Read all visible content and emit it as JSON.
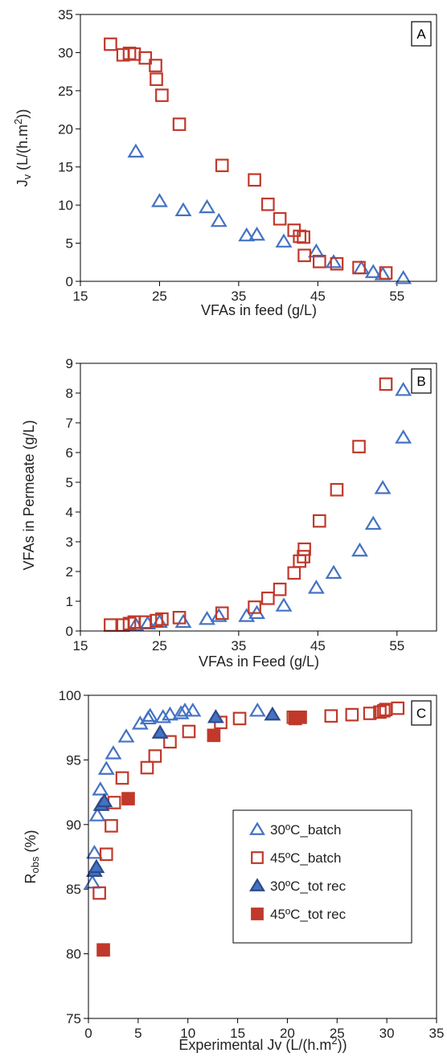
{
  "colors": {
    "blue": "#4472C4",
    "red": "#C0392B",
    "axis": "#000000"
  },
  "chart_data": [
    {
      "type": "scatter",
      "panel": "A",
      "xlabel": "VFAs in feed (g/L)",
      "ylabel_main": "J",
      "ylabel_sub": "v",
      "ylabel_unit": " (L/(h.m",
      "ylabel_sup": "2",
      "ylabel_end": "))",
      "xlim": [
        15,
        60
      ],
      "ylim": [
        0,
        35
      ],
      "xticks": [
        15,
        25,
        35,
        45,
        55
      ],
      "yticks": [
        0,
        5,
        10,
        15,
        20,
        25,
        30,
        35
      ],
      "grid": false,
      "series": [
        {
          "marker": "triangle-open",
          "color": "#4472C4",
          "points": [
            [
              22,
              17
            ],
            [
              25,
              10.5
            ],
            [
              28,
              9.3
            ],
            [
              31,
              9.7
            ],
            [
              32.5,
              7.9
            ],
            [
              36,
              6
            ],
            [
              37.3,
              6.1
            ],
            [
              40.7,
              5.2
            ],
            [
              44.8,
              3.9
            ],
            [
              47,
              2.5
            ],
            [
              50.5,
              1.7
            ],
            [
              52,
              1.2
            ],
            [
              53.2,
              0.9
            ],
            [
              55.8,
              0.4
            ]
          ]
        },
        {
          "marker": "square-open",
          "color": "#C0392B",
          "points": [
            [
              18.8,
              31.1
            ],
            [
              20.4,
              29.7
            ],
            [
              21.2,
              29.9
            ],
            [
              21.8,
              29.8
            ],
            [
              23.2,
              29.3
            ],
            [
              24.5,
              28.3
            ],
            [
              24.6,
              26.5
            ],
            [
              25.3,
              24.4
            ],
            [
              27.5,
              20.6
            ],
            [
              32.9,
              15.2
            ],
            [
              37,
              13.3
            ],
            [
              38.7,
              10.1
            ],
            [
              40.2,
              8.2
            ],
            [
              42,
              6.7
            ],
            [
              42.7,
              5.9
            ],
            [
              43.2,
              5.8
            ],
            [
              43.3,
              3.4
            ],
            [
              45.2,
              2.6
            ],
            [
              47.4,
              2.3
            ],
            [
              50.2,
              1.8
            ],
            [
              53.6,
              1.1
            ]
          ]
        }
      ]
    },
    {
      "type": "scatter",
      "panel": "B",
      "xlabel": "VFAs in Feed (g/L)",
      "ylabel": "VFAs in Permeate (g/L)",
      "xlim": [
        15,
        60
      ],
      "ylim": [
        0,
        9
      ],
      "xticks": [
        15,
        25,
        35,
        45,
        55
      ],
      "yticks": [
        0,
        1,
        2,
        3,
        4,
        5,
        6,
        7,
        8,
        9
      ],
      "grid": false,
      "series": [
        {
          "marker": "triangle-open",
          "color": "#4472C4",
          "points": [
            [
              22,
              0.2
            ],
            [
              23.5,
              0.25
            ],
            [
              25,
              0.3
            ],
            [
              28,
              0.3
            ],
            [
              31,
              0.4
            ],
            [
              32.5,
              0.5
            ],
            [
              36,
              0.5
            ],
            [
              37.3,
              0.6
            ],
            [
              40.7,
              0.85
            ],
            [
              44.8,
              1.45
            ],
            [
              47,
              1.95
            ],
            [
              50.3,
              2.7
            ],
            [
              52,
              3.6
            ],
            [
              53.2,
              4.8
            ],
            [
              55.8,
              6.5
            ],
            [
              55.8,
              8.1
            ]
          ]
        },
        {
          "marker": "square-open",
          "color": "#C0392B",
          "points": [
            [
              18.8,
              0.2
            ],
            [
              20.4,
              0.2
            ],
            [
              21.2,
              0.25
            ],
            [
              21.8,
              0.3
            ],
            [
              23.2,
              0.3
            ],
            [
              24.6,
              0.35
            ],
            [
              25.3,
              0.4
            ],
            [
              27.5,
              0.45
            ],
            [
              32.9,
              0.6
            ],
            [
              37,
              0.8
            ],
            [
              38.7,
              1.1
            ],
            [
              40.2,
              1.4
            ],
            [
              42,
              1.95
            ],
            [
              42.7,
              2.35
            ],
            [
              43.2,
              2.5
            ],
            [
              43.3,
              2.75
            ],
            [
              45.2,
              3.7
            ],
            [
              47.4,
              4.75
            ],
            [
              50.2,
              6.2
            ],
            [
              53.6,
              8.3
            ]
          ]
        }
      ]
    },
    {
      "type": "scatter",
      "panel": "C",
      "xlabel_main": "Experimental Jv (L/(h.m",
      "xlabel_sup": "2",
      "xlabel_end": "))",
      "ylabel_main": "R",
      "ylabel_sub": "obs",
      "ylabel_unit": " (%)",
      "xlim": [
        0,
        35
      ],
      "ylim": [
        75,
        100
      ],
      "xticks": [
        0,
        5,
        10,
        15,
        20,
        25,
        30,
        35
      ],
      "yticks": [
        75,
        80,
        85,
        90,
        95,
        100
      ],
      "grid": false,
      "legend_position": "right",
      "legend": [
        "30ºC_batch",
        "45ºC_batch",
        "30ºC_tot rec",
        "45ºC_tot rec"
      ],
      "series": [
        {
          "name": "30ºC_batch",
          "marker": "triangle-open",
          "color": "#4472C4",
          "points": [
            [
              0.4,
              85.5
            ],
            [
              0.6,
              87.8
            ],
            [
              0.9,
              90.7
            ],
            [
              1.2,
              92.7
            ],
            [
              1.8,
              94.3
            ],
            [
              2.5,
              95.5
            ],
            [
              3.8,
              96.8
            ],
            [
              5.2,
              97.8
            ],
            [
              6,
              98.2
            ],
            [
              6.2,
              98.4
            ],
            [
              7.5,
              98.3
            ],
            [
              8.2,
              98.5
            ],
            [
              9.3,
              98.6
            ],
            [
              9.7,
              98.8
            ],
            [
              10.5,
              98.8
            ],
            [
              17,
              98.8
            ]
          ]
        },
        {
          "name": "45ºC_batch",
          "marker": "square-open",
          "color": "#C0392B",
          "points": [
            [
              1.1,
              84.7
            ],
            [
              1.8,
              87.7
            ],
            [
              2.3,
              89.9
            ],
            [
              2.6,
              91.7
            ],
            [
              3.4,
              93.6
            ],
            [
              5.9,
              94.4
            ],
            [
              6.7,
              95.3
            ],
            [
              8.2,
              96.4
            ],
            [
              10.1,
              97.2
            ],
            [
              13.3,
              97.9
            ],
            [
              15.2,
              98.2
            ],
            [
              20.6,
              98.3
            ],
            [
              24.4,
              98.4
            ],
            [
              26.5,
              98.5
            ],
            [
              28.3,
              98.6
            ],
            [
              29.3,
              98.7
            ],
            [
              29.7,
              98.8
            ],
            [
              29.9,
              98.9
            ],
            [
              31.1,
              99
            ]
          ]
        },
        {
          "name": "30ºC_tot rec",
          "marker": "triangle-filled",
          "color": "#4472C4",
          "points": [
            [
              0.6,
              86.4
            ],
            [
              0.8,
              86.7
            ],
            [
              1.3,
              91.5
            ],
            [
              1.6,
              91.8
            ],
            [
              7.2,
              97.1
            ],
            [
              12.8,
              98.3
            ],
            [
              18.5,
              98.5
            ]
          ]
        },
        {
          "name": "45ºC_tot rec",
          "marker": "square-filled",
          "color": "#C0392B",
          "points": [
            [
              1.5,
              80.3
            ],
            [
              4,
              92
            ],
            [
              12.6,
              96.9
            ],
            [
              20.8,
              98.2
            ],
            [
              21.3,
              98.3
            ]
          ]
        }
      ]
    }
  ]
}
